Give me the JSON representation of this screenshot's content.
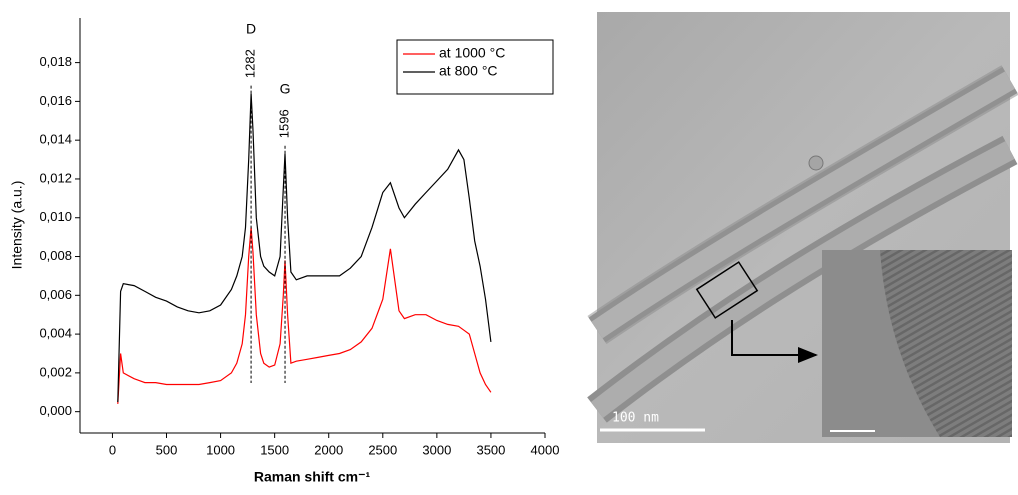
{
  "chart_data": {
    "type": "line",
    "x_label": "Raman shift cm⁻¹",
    "y_label": "Intensity (a.u.)",
    "x": [
      50,
      75,
      100,
      200,
      300,
      400,
      500,
      600,
      700,
      800,
      900,
      1000,
      1100,
      1150,
      1200,
      1230,
      1260,
      1282,
      1300,
      1330,
      1370,
      1400,
      1450,
      1500,
      1550,
      1580,
      1596,
      1620,
      1650,
      1700,
      1800,
      1900,
      2000,
      2100,
      2200,
      2300,
      2400,
      2500,
      2570,
      2650,
      2700,
      2800,
      2900,
      3000,
      3100,
      3200,
      3250,
      3300,
      3350,
      3400,
      3450,
      3500
    ],
    "series": [
      {
        "name": "at 1000 °C",
        "color": "#ff0000",
        "values": [
          0.0004,
          0.003,
          0.002,
          0.0017,
          0.0015,
          0.0015,
          0.0014,
          0.0014,
          0.0014,
          0.0014,
          0.0015,
          0.0016,
          0.002,
          0.0025,
          0.0035,
          0.005,
          0.008,
          0.0095,
          0.0082,
          0.005,
          0.003,
          0.0025,
          0.0023,
          0.0024,
          0.0035,
          0.006,
          0.0078,
          0.005,
          0.0025,
          0.0026,
          0.0027,
          0.0028,
          0.0029,
          0.003,
          0.0032,
          0.0036,
          0.0043,
          0.0058,
          0.0084,
          0.0052,
          0.0048,
          0.005,
          0.005,
          0.0047,
          0.0045,
          0.0044,
          0.0042,
          0.004,
          0.003,
          0.002,
          0.0014,
          0.001
        ]
      },
      {
        "name": "at 800 °C",
        "color": "#000000",
        "values": [
          0.0005,
          0.0062,
          0.0066,
          0.0065,
          0.0062,
          0.0059,
          0.0057,
          0.0054,
          0.0052,
          0.0051,
          0.0052,
          0.0055,
          0.0063,
          0.007,
          0.008,
          0.0095,
          0.013,
          0.0164,
          0.0145,
          0.01,
          0.008,
          0.0075,
          0.0072,
          0.007,
          0.008,
          0.0115,
          0.0133,
          0.01,
          0.0072,
          0.0068,
          0.007,
          0.007,
          0.007,
          0.007,
          0.0074,
          0.008,
          0.0095,
          0.0113,
          0.0118,
          0.0105,
          0.01,
          0.0107,
          0.0113,
          0.0119,
          0.0125,
          0.0135,
          0.013,
          0.011,
          0.0088,
          0.0075,
          0.0058,
          0.0036
        ]
      }
    ],
    "annotations": [
      {
        "label": "D",
        "value": 1282
      },
      {
        "label": "G",
        "value": 1596
      }
    ],
    "xlim": [
      -300,
      4000
    ],
    "xticks": [
      0,
      500,
      1000,
      1500,
      2000,
      2500,
      3000,
      3500,
      4000
    ],
    "ylim": [
      -0.0011,
      0.0203
    ],
    "yticks": [
      {
        "value": 0,
        "label": "0,000"
      },
      {
        "value": 0.002,
        "label": "0,002"
      },
      {
        "value": 0.004,
        "label": "0,004"
      },
      {
        "value": 0.006,
        "label": "0,006"
      },
      {
        "value": 0.008,
        "label": "0,008"
      },
      {
        "value": 0.01,
        "label": "0,010"
      },
      {
        "value": 0.012,
        "label": "0,012"
      },
      {
        "value": 0.014,
        "label": "0,014"
      },
      {
        "value": 0.016,
        "label": "0,016"
      },
      {
        "value": 0.018,
        "label": "0,018"
      }
    ],
    "legend": "top-right"
  },
  "image": {
    "scale_bar_label": "100 nm"
  }
}
